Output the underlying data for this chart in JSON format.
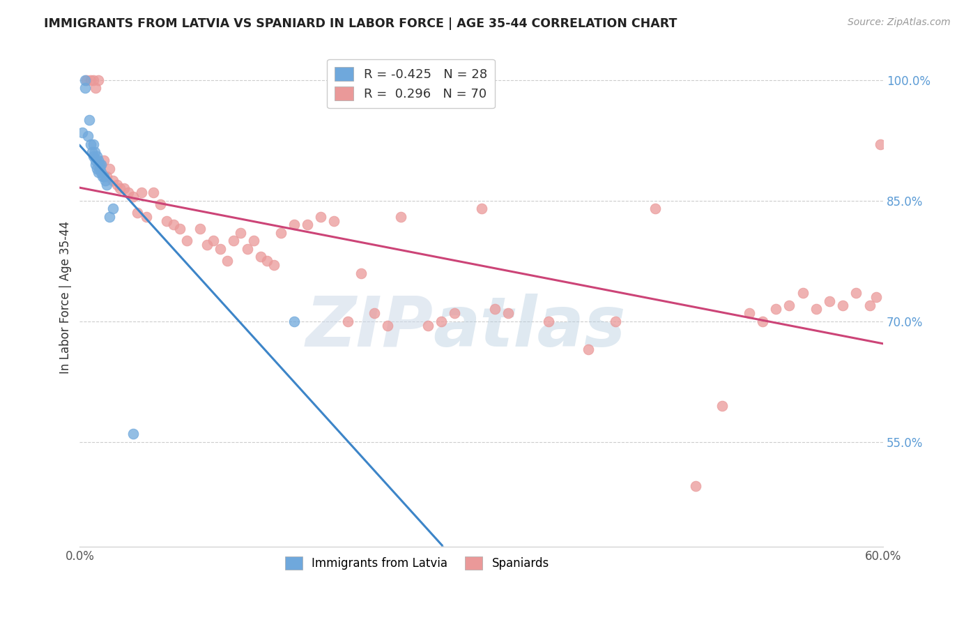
{
  "title": "IMMIGRANTS FROM LATVIA VS SPANIARD IN LABOR FORCE | AGE 35-44 CORRELATION CHART",
  "source": "Source: ZipAtlas.com",
  "ylabel": "In Labor Force | Age 35-44",
  "xlim": [
    0.0,
    0.6
  ],
  "ylim": [
    0.42,
    1.04
  ],
  "xticks": [
    0.0,
    0.1,
    0.2,
    0.3,
    0.4,
    0.5,
    0.6
  ],
  "xticklabels": [
    "0.0%",
    "",
    "",
    "",
    "",
    "",
    "60.0%"
  ],
  "yticks_right": [
    0.55,
    0.7,
    0.85,
    1.0
  ],
  "yticklabels_right": [
    "55.0%",
    "70.0%",
    "85.0%",
    "100.0%"
  ],
  "latvia_R": -0.425,
  "latvia_N": 28,
  "spain_R": 0.296,
  "spain_N": 70,
  "latvia_color": "#6fa8dc",
  "spain_color": "#ea9999",
  "latvia_line_color": "#3d85c8",
  "spain_line_color": "#cc4477",
  "watermark_zip": "ZIP",
  "watermark_atlas": "atlas",
  "latvia_scatter_x": [
    0.002,
    0.004,
    0.004,
    0.006,
    0.007,
    0.008,
    0.009,
    0.01,
    0.01,
    0.011,
    0.012,
    0.012,
    0.013,
    0.013,
    0.014,
    0.014,
    0.015,
    0.015,
    0.016,
    0.016,
    0.017,
    0.018,
    0.019,
    0.02,
    0.022,
    0.025,
    0.04,
    0.16
  ],
  "latvia_scatter_y": [
    0.935,
    0.99,
    1.0,
    0.93,
    0.95,
    0.92,
    0.91,
    0.905,
    0.92,
    0.91,
    0.895,
    0.9,
    0.89,
    0.905,
    0.885,
    0.9,
    0.89,
    0.895,
    0.885,
    0.895,
    0.88,
    0.88,
    0.875,
    0.87,
    0.83,
    0.84,
    0.56,
    0.7
  ],
  "spain_scatter_x": [
    0.005,
    0.008,
    0.01,
    0.012,
    0.014,
    0.016,
    0.018,
    0.02,
    0.022,
    0.025,
    0.028,
    0.03,
    0.033,
    0.036,
    0.04,
    0.043,
    0.046,
    0.05,
    0.055,
    0.06,
    0.065,
    0.07,
    0.075,
    0.08,
    0.09,
    0.095,
    0.1,
    0.105,
    0.11,
    0.115,
    0.12,
    0.125,
    0.13,
    0.135,
    0.14,
    0.145,
    0.15,
    0.16,
    0.17,
    0.18,
    0.19,
    0.2,
    0.21,
    0.22,
    0.23,
    0.24,
    0.26,
    0.27,
    0.28,
    0.3,
    0.31,
    0.32,
    0.35,
    0.38,
    0.4,
    0.43,
    0.46,
    0.48,
    0.5,
    0.51,
    0.52,
    0.53,
    0.54,
    0.55,
    0.56,
    0.57,
    0.58,
    0.59,
    0.595,
    0.598
  ],
  "spain_scatter_y": [
    1.0,
    1.0,
    1.0,
    0.99,
    1.0,
    0.895,
    0.9,
    0.88,
    0.89,
    0.875,
    0.87,
    0.865,
    0.865,
    0.86,
    0.855,
    0.835,
    0.86,
    0.83,
    0.86,
    0.845,
    0.825,
    0.82,
    0.815,
    0.8,
    0.815,
    0.795,
    0.8,
    0.79,
    0.775,
    0.8,
    0.81,
    0.79,
    0.8,
    0.78,
    0.775,
    0.77,
    0.81,
    0.82,
    0.82,
    0.83,
    0.825,
    0.7,
    0.76,
    0.71,
    0.695,
    0.83,
    0.695,
    0.7,
    0.71,
    0.84,
    0.715,
    0.71,
    0.7,
    0.665,
    0.7,
    0.84,
    0.495,
    0.595,
    0.71,
    0.7,
    0.715,
    0.72,
    0.735,
    0.715,
    0.725,
    0.72,
    0.735,
    0.72,
    0.73,
    0.92
  ]
}
